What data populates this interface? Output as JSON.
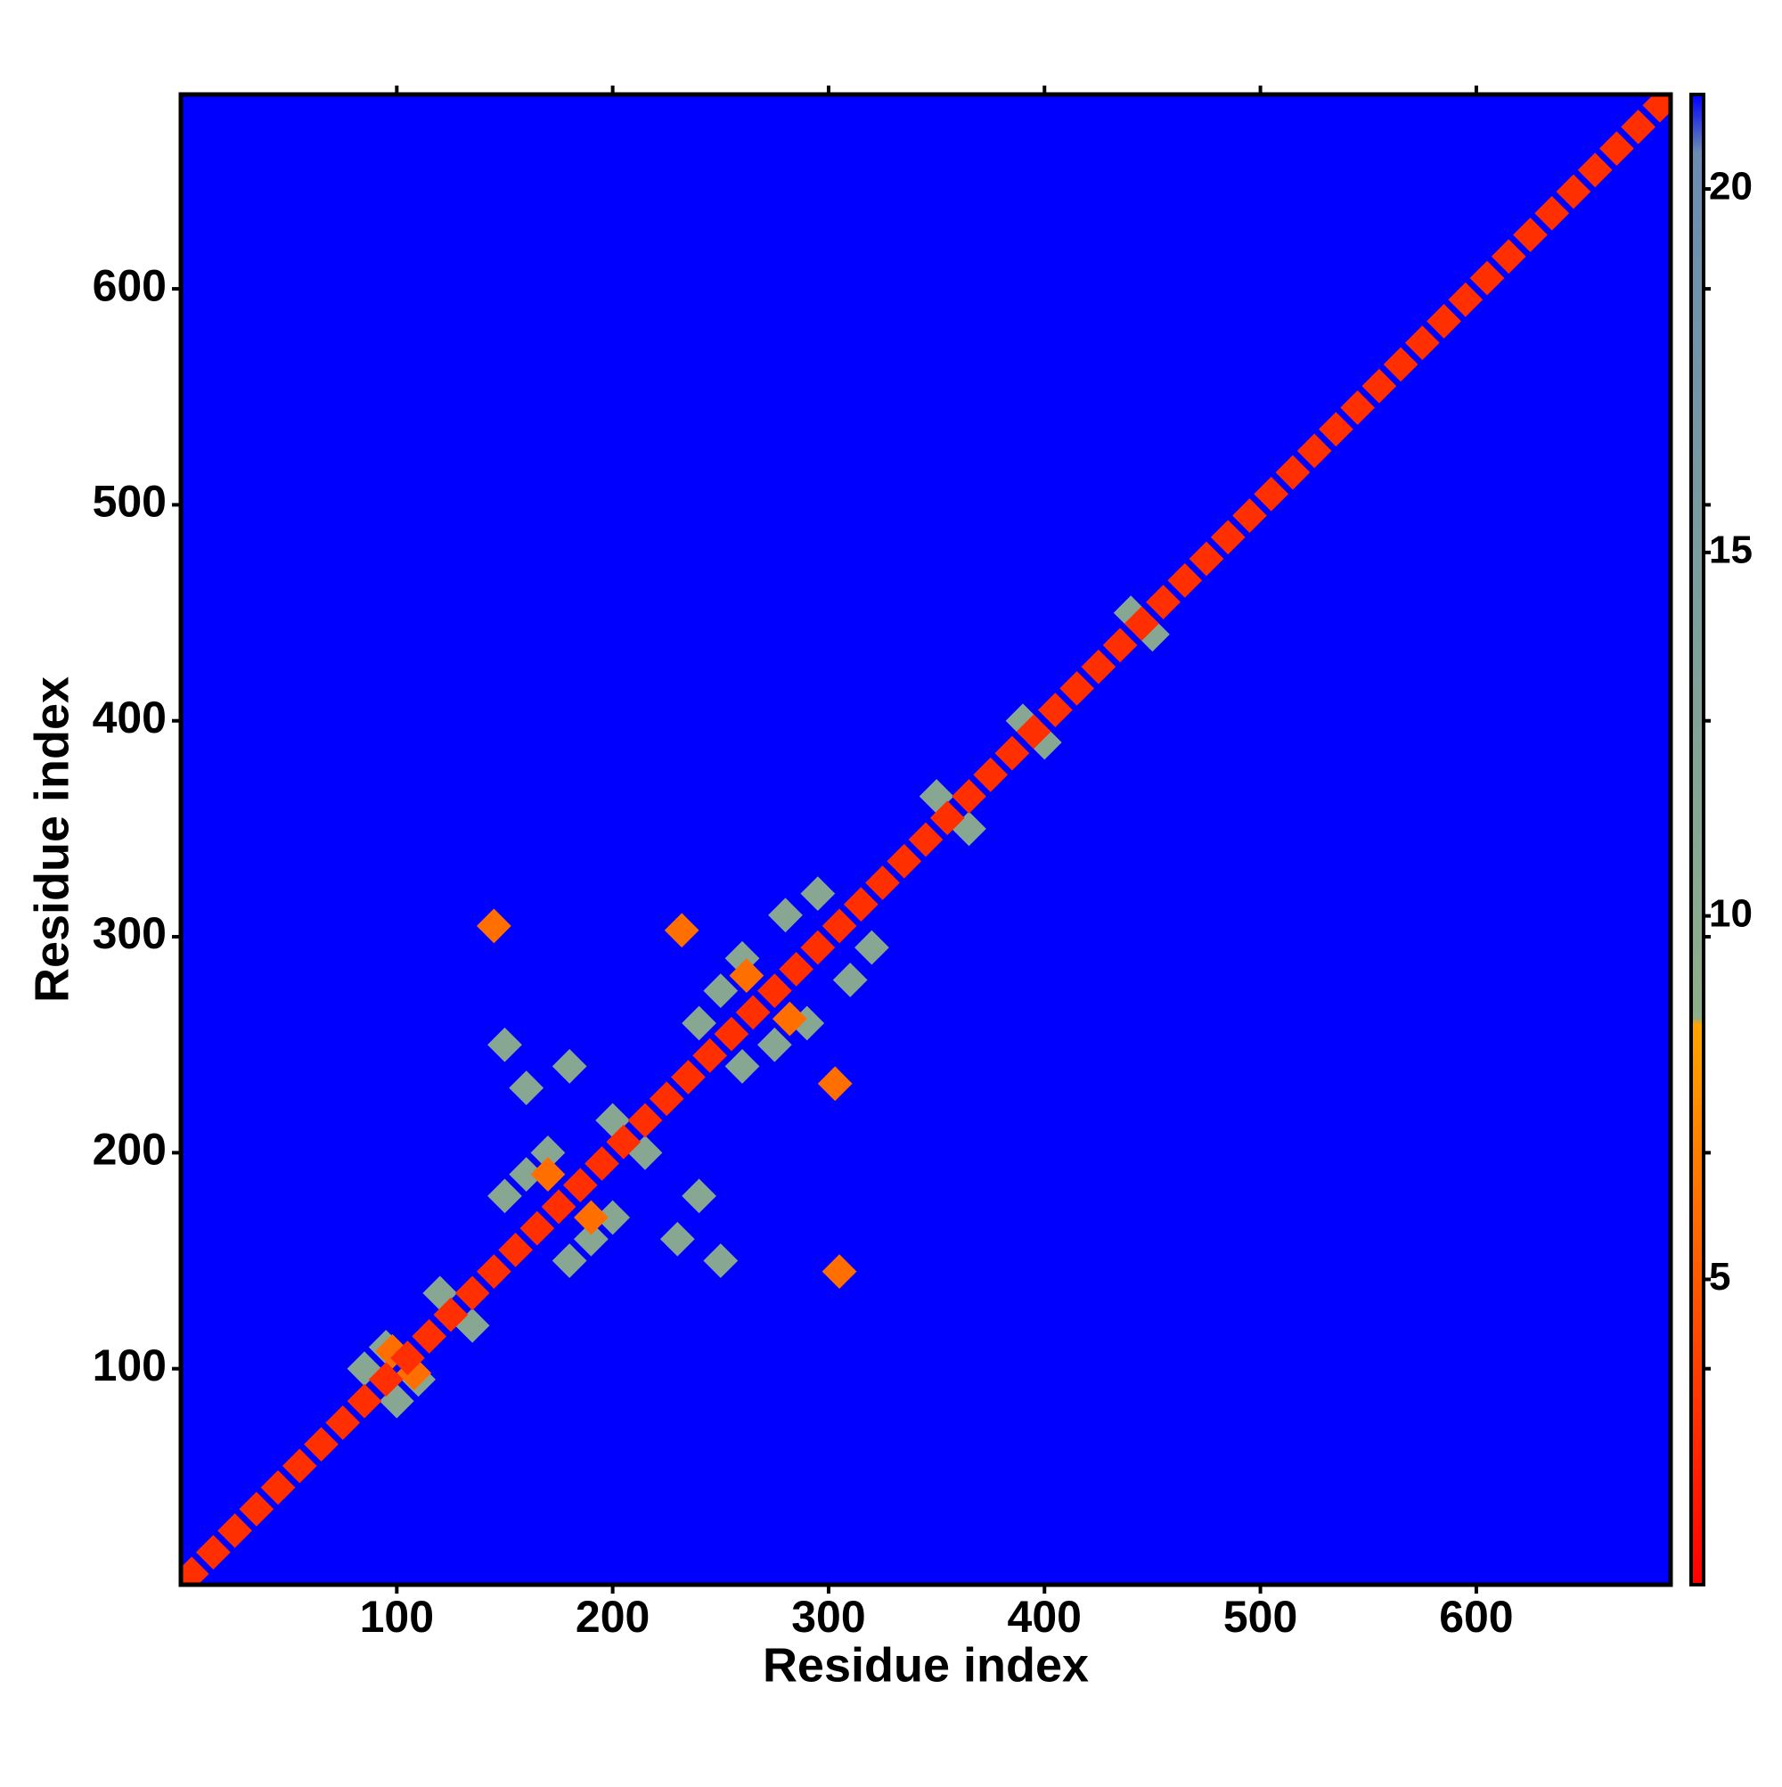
{
  "chart_data": {
    "type": "heatmap",
    "x_label": "Residue index",
    "y_label": "Residue index",
    "xlim": [
      0,
      690
    ],
    "ylim": [
      0,
      690
    ],
    "xticks": [
      100,
      200,
      300,
      400,
      500,
      600
    ],
    "yticks": [
      100,
      200,
      300,
      400,
      500,
      600
    ],
    "zlim": [
      0.8,
      21.3
    ],
    "zticks": [
      5,
      10,
      15,
      20
    ],
    "colorscale": [
      [
        0.8,
        "#ff0000"
      ],
      [
        8.5,
        "#ffa500"
      ],
      [
        8.6,
        "#8fae8a"
      ],
      [
        20.5,
        "#6b8cb0"
      ],
      [
        21.3,
        "#0000ff"
      ]
    ],
    "x": [
      95,
      110,
      85,
      100,
      120,
      135,
      160,
      190,
      150,
      180,
      170,
      200,
      200,
      215,
      250,
      275,
      260,
      290,
      240,
      260,
      280,
      310,
      295,
      320,
      350,
      365,
      160,
      230,
      150,
      250,
      180,
      240,
      390,
      400,
      440,
      450,
      145,
      305,
      232,
      303,
      108,
      98,
      190,
      170,
      262,
      282,
      5,
      15,
      25,
      35,
      45,
      55,
      65,
      75,
      85,
      95,
      105,
      115,
      125,
      135,
      145,
      155,
      165,
      175,
      185,
      195,
      205,
      215,
      225,
      235,
      245,
      255,
      265,
      275,
      285,
      295,
      305,
      315,
      325,
      335,
      345,
      355,
      365,
      375,
      385,
      395,
      405,
      415,
      425,
      435,
      445,
      455,
      465,
      475,
      485,
      495,
      505,
      515,
      525,
      535,
      545,
      555,
      565,
      575,
      585,
      595,
      605,
      615,
      625,
      635,
      645,
      655,
      665,
      675,
      685
    ],
    "y": [
      110,
      95,
      100,
      85,
      135,
      120,
      190,
      160,
      180,
      150,
      200,
      170,
      215,
      200,
      275,
      250,
      290,
      260,
      260,
      240,
      310,
      280,
      320,
      295,
      365,
      350,
      230,
      160,
      250,
      150,
      240,
      180,
      400,
      390,
      450,
      440,
      305,
      145,
      303,
      232,
      98,
      108,
      170,
      190,
      282,
      262,
      5,
      15,
      25,
      35,
      45,
      55,
      65,
      75,
      85,
      95,
      105,
      115,
      125,
      135,
      145,
      155,
      165,
      175,
      185,
      195,
      205,
      215,
      225,
      235,
      245,
      255,
      265,
      275,
      285,
      295,
      305,
      315,
      325,
      335,
      345,
      355,
      365,
      375,
      385,
      395,
      405,
      415,
      425,
      435,
      445,
      455,
      465,
      475,
      485,
      495,
      505,
      515,
      525,
      535,
      545,
      555,
      565,
      575,
      585,
      595,
      605,
      615,
      625,
      635,
      645,
      655,
      665,
      675,
      685
    ],
    "values": [
      11,
      11,
      11,
      11,
      11,
      11,
      11,
      11,
      11,
      11,
      11,
      11,
      11,
      11,
      11,
      11,
      11,
      11,
      11,
      11,
      11,
      11,
      11,
      11,
      11,
      11,
      11,
      11,
      11,
      11,
      11,
      11,
      11,
      11,
      11,
      11,
      6,
      6,
      6,
      6,
      6,
      6,
      6,
      6,
      6,
      6,
      3,
      3,
      3,
      3,
      3,
      3,
      3,
      3,
      3,
      3,
      3,
      3,
      3,
      3,
      3,
      3,
      3,
      3,
      3,
      3,
      3,
      3,
      3,
      3,
      3,
      3,
      3,
      3,
      3,
      3,
      3,
      3,
      3,
      3,
      3,
      3,
      3,
      3,
      3,
      3,
      3,
      3,
      3,
      3,
      3,
      3,
      3,
      3,
      3,
      3,
      3,
      3,
      3,
      3,
      3,
      3,
      3,
      3,
      3,
      3,
      3,
      3,
      3,
      3,
      3,
      3,
      3,
      3,
      3
    ]
  }
}
